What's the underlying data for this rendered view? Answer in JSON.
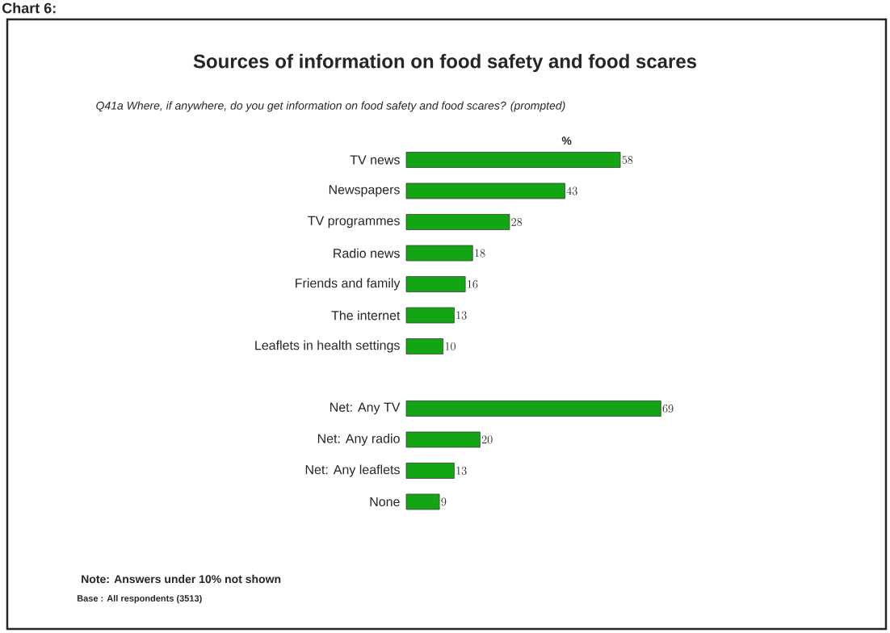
{
  "chart_data": {
    "type": "bar",
    "orientation": "horizontal",
    "title": "Sources of information on food safety and food scares",
    "subtitle": "Q41a Where, if anywhere, do you get information on food safety and food scares? (prompted)",
    "xlabel": "%",
    "categories": [
      "TV news",
      "Newspapers",
      "TV programmes",
      "Radio news",
      "Friends and family",
      "The internet",
      "Leaflets in health settings",
      null,
      "Net: Any TV",
      "Net: Any radio",
      "Net: Any leaflets",
      "None"
    ],
    "values": [
      58,
      43,
      28,
      18,
      16,
      13,
      10,
      null,
      69,
      20,
      13,
      9
    ],
    "color": "#14a514",
    "data_labels": true,
    "annotations": [
      "Chart 6:",
      "Note: Answers under 10% not shown",
      "Base : All respondents (3513)"
    ]
  }
}
